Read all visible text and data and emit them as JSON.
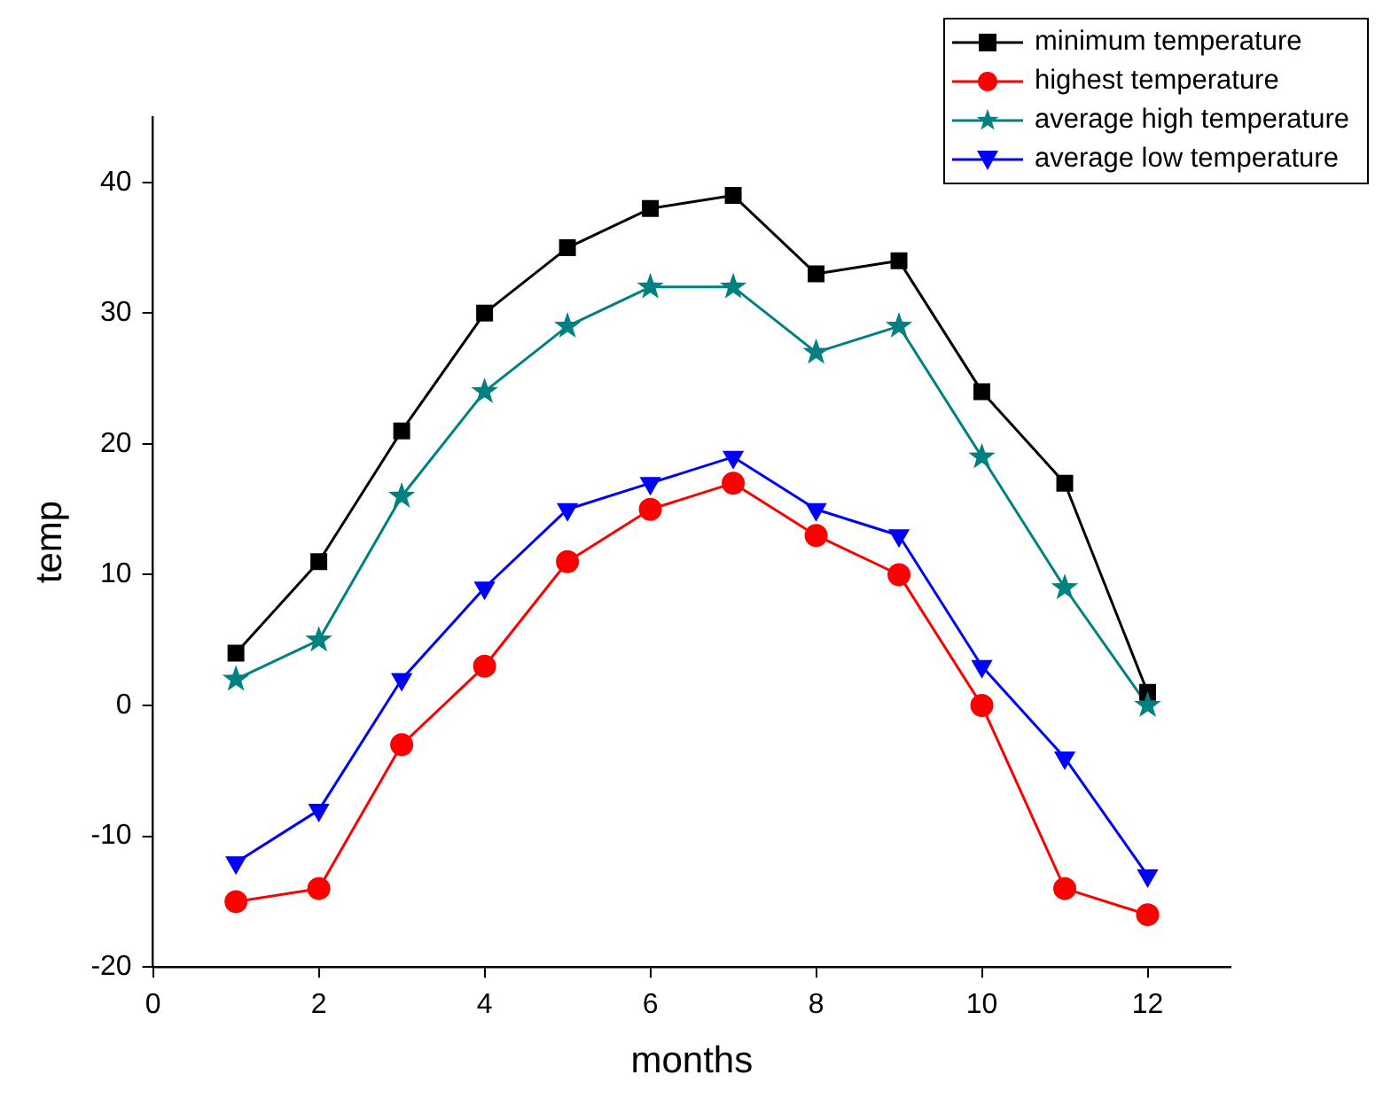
{
  "chart_data": {
    "type": "line",
    "xlabel": "months",
    "ylabel": "temp",
    "x": [
      1,
      2,
      3,
      4,
      5,
      6,
      7,
      8,
      9,
      10,
      11,
      12
    ],
    "xlim": [
      0,
      13
    ],
    "xticks": [
      0,
      2,
      4,
      6,
      8,
      10,
      12
    ],
    "ylim": [
      -20,
      45
    ],
    "yticks": [
      -20,
      -10,
      0,
      10,
      20,
      30,
      40
    ],
    "grid": false,
    "legend": "top right",
    "line_style": "solid",
    "series": [
      {
        "name": "minimum temperature",
        "color": "#000000",
        "marker": "square",
        "values": [
          4,
          11,
          21,
          30,
          35,
          38,
          39,
          33,
          34,
          24,
          17,
          1
        ]
      },
      {
        "name": "highest temperature",
        "color": "#ff0000",
        "marker": "circle",
        "values": [
          -15,
          -14,
          -3,
          3,
          11,
          15,
          17,
          13,
          10,
          0,
          -14,
          -16
        ]
      },
      {
        "name": "average high temperature",
        "color": "#008080",
        "marker": "star",
        "values": [
          2,
          5,
          16,
          24,
          29,
          32,
          32,
          27,
          29,
          19,
          9,
          0
        ]
      },
      {
        "name": "average low temperature",
        "color": "#0000ff",
        "marker": "triangle",
        "values": [
          -12,
          -8,
          2,
          9,
          15,
          17,
          19,
          15,
          13,
          3,
          -4,
          -13
        ]
      }
    ]
  }
}
